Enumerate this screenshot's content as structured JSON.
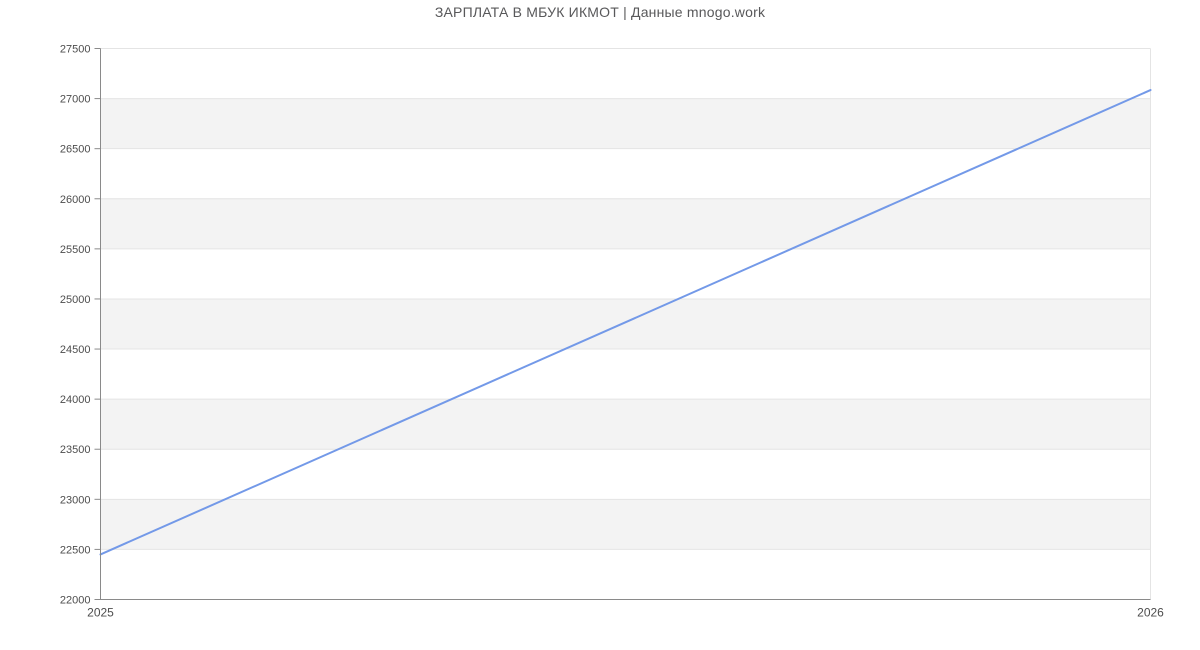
{
  "chart_data": {
    "type": "line",
    "title": "ЗАРПЛАТА В МБУК ИКМОТ | Данные mnogo.work",
    "x_labels": [
      "2025",
      "2026"
    ],
    "x": [
      2025,
      2026
    ],
    "values": [
      22450,
      27085
    ],
    "ylim": [
      22000,
      27500
    ],
    "ytick_step": 500,
    "yticks": [
      22000,
      22500,
      23000,
      23500,
      24000,
      24500,
      25000,
      25500,
      26000,
      26500,
      27000,
      27500
    ],
    "xlabel": "",
    "ylabel": "",
    "grid": true,
    "plot_bands_alternating": true,
    "legend": "none",
    "colors": {
      "line": "#7399e8",
      "band": "#f3f3f3",
      "grid": "#e4e4e4",
      "axis": "#8a8a8a",
      "tick_label": "#4d4d4d",
      "title": "#58585a"
    }
  }
}
